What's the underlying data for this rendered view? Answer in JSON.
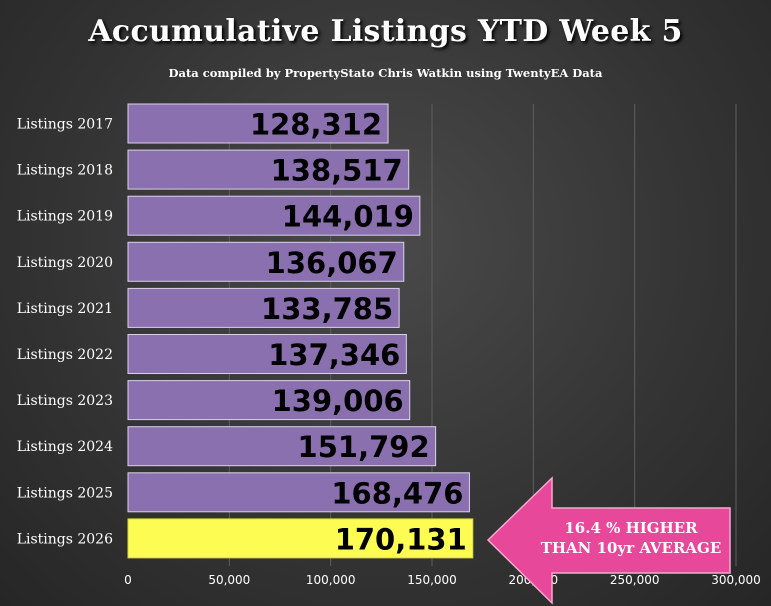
{
  "chart_data": {
    "type": "bar",
    "orientation": "horizontal",
    "title": "Accumulative Listings YTD Week 5",
    "subtitle": "Data compiled by PropertyStato Chris Watkin using TwentyEA Data",
    "categories": [
      "Listings 2017",
      "Listings 2018",
      "Listings 2019",
      "Listings 2020",
      "Listings 2021",
      "Listings 2022",
      "Listings 2023",
      "Listings 2024",
      "Listings 2025",
      "Listings 2026"
    ],
    "values": [
      128312,
      138517,
      144019,
      136067,
      133785,
      137346,
      139006,
      151792,
      168476,
      170131
    ],
    "value_labels": [
      "128,312",
      "138,517",
      "144,019",
      "136,067",
      "133,785",
      "137,346",
      "139,006",
      "151,792",
      "168,476",
      "170,131"
    ],
    "xlim": [
      0,
      300000
    ],
    "x_ticks": [
      0,
      50000,
      100000,
      150000,
      200000,
      250000,
      300000
    ],
    "x_tick_labels": [
      "0",
      "50,000",
      "100,000",
      "150,000",
      "200,000",
      "250,000",
      "300,000"
    ],
    "grid": "vertical",
    "colors": {
      "bar": "#8b70b0",
      "bar_highlight": "#fcfc52",
      "grid": "#5e5e5e",
      "callout": "#e8489a"
    },
    "annotation": {
      "text_line1": "16.4 % HIGHER",
      "text_line2": "THAN 10yr AVERAGE",
      "points_to": "Listings 2026",
      "shape": "left-arrow"
    }
  }
}
